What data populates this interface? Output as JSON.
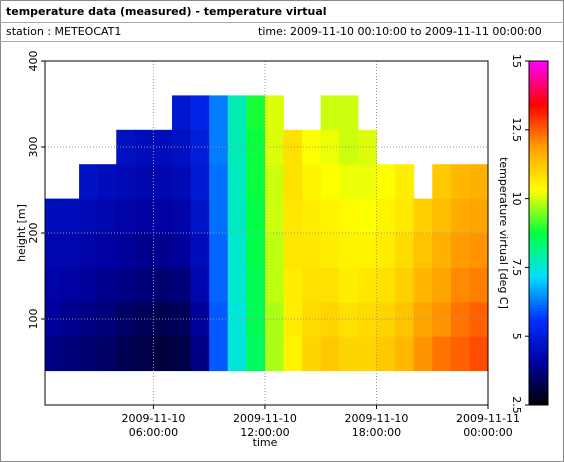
{
  "chart_data": {
    "type": "heatmap",
    "title": "temperature data (measured) - temperature virtual",
    "station": "station : METEOCAT1",
    "period": "time: 2009-11-10 00:10:00 to 2009-11-11 00:00:00",
    "xlabel": "time",
    "ylabel": "height [m]",
    "zlabel": "temperature virtual [deg C]",
    "xlim": [
      0.1667,
      24
    ],
    "xticks": [
      {
        "value": 6,
        "label": "2009-11-10 06:00:00"
      },
      {
        "value": 12,
        "label": "2009-11-10 12:00:00"
      },
      {
        "value": 18,
        "label": "2009-11-10 18:00:00"
      },
      {
        "value": 24,
        "label": "2009-11-11 00:00:00"
      }
    ],
    "ylim": [
      0,
      400
    ],
    "yticks": [
      100,
      200,
      300,
      400
    ],
    "zlim": [
      2.5,
      15
    ],
    "zticks": [
      2.5,
      5,
      7.5,
      10,
      12.5,
      15
    ],
    "grid": true,
    "colormap": [
      "#000000",
      "#0000a0",
      "#0030ff",
      "#00e0ff",
      "#00ff40",
      "#ffff00",
      "#ffa000",
      "#ff0000",
      "#ff00ff"
    ],
    "x": [
      0.1667,
      1,
      2,
      3,
      4,
      5,
      6,
      7,
      8,
      9,
      10,
      11,
      12,
      13,
      14,
      15,
      16,
      17,
      18,
      19,
      20,
      21,
      22,
      23
    ],
    "y": [
      40,
      80,
      120,
      160,
      200,
      240,
      280,
      320
    ],
    "z": [
      [
        3.8,
        4.0,
        4.2,
        4.3,
        4.5,
        null,
        null,
        null
      ],
      [
        3.7,
        3.9,
        4.1,
        4.3,
        4.5,
        null,
        null,
        null
      ],
      [
        3.6,
        3.8,
        4.0,
        4.2,
        4.4,
        4.6,
        null,
        null
      ],
      [
        3.5,
        3.7,
        3.9,
        4.1,
        4.3,
        4.5,
        null,
        null
      ],
      [
        3.3,
        3.5,
        3.8,
        4.0,
        4.2,
        4.4,
        4.6,
        null
      ],
      [
        3.2,
        3.4,
        3.7,
        3.9,
        4.1,
        4.3,
        4.5,
        null
      ],
      [
        3.1,
        3.3,
        3.6,
        3.9,
        4.1,
        4.3,
        4.5,
        null
      ],
      [
        3.2,
        3.4,
        3.7,
        4.0,
        4.2,
        4.4,
        4.6,
        4.8
      ],
      [
        3.8,
        4.0,
        4.3,
        4.5,
        4.7,
        4.9,
        5.0,
        5.2
      ],
      [
        6.0,
        6.0,
        6.1,
        6.1,
        6.2,
        6.2,
        6.3,
        6.3
      ],
      [
        7.5,
        7.5,
        7.6,
        7.6,
        7.7,
        7.7,
        7.8,
        7.8
      ],
      [
        8.5,
        8.6,
        8.6,
        8.7,
        8.7,
        8.8,
        8.8,
        8.9
      ],
      [
        9.8,
        9.8,
        9.9,
        9.9,
        10.0,
        10.0,
        10.1,
        10.1
      ],
      [
        10.5,
        10.6,
        10.6,
        10.7,
        10.7,
        10.8,
        10.8,
        null
      ],
      [
        11.0,
        10.9,
        10.8,
        10.7,
        10.6,
        10.5,
        10.3,
        null
      ],
      [
        11.2,
        11.0,
        10.8,
        10.6,
        10.5,
        10.3,
        10.2,
        10.0
      ],
      [
        11.0,
        10.8,
        10.6,
        10.5,
        10.4,
        10.2,
        10.0,
        10.0
      ],
      [
        11.0,
        10.9,
        10.7,
        10.5,
        10.3,
        10.2,
        10.1,
        null
      ],
      [
        11.2,
        11.0,
        10.8,
        10.6,
        10.5,
        10.3,
        null,
        null
      ],
      [
        11.5,
        11.3,
        11.1,
        10.9,
        10.7,
        10.6,
        null,
        null
      ],
      [
        12.0,
        11.8,
        11.5,
        11.3,
        11.1,
        null,
        null,
        null
      ],
      [
        12.3,
        12.0,
        11.8,
        11.6,
        11.4,
        11.2,
        null,
        null
      ],
      [
        12.5,
        12.3,
        12.1,
        11.9,
        11.7,
        11.5,
        null,
        null
      ],
      [
        12.7,
        12.5,
        12.2,
        12.0,
        11.8,
        11.6,
        null,
        null
      ]
    ]
  }
}
